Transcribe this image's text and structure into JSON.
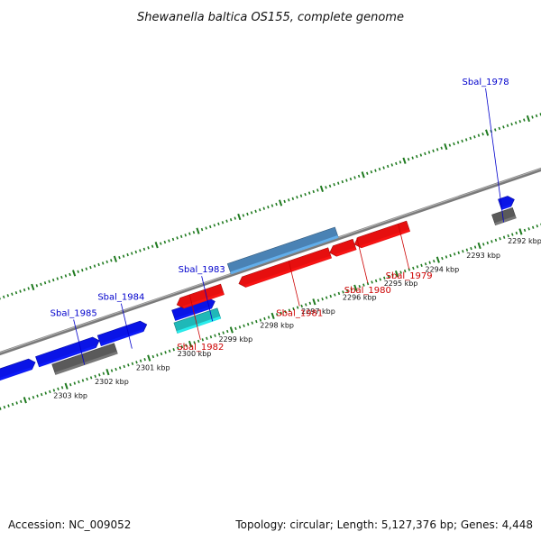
{
  "title": "Shewanella baltica OS155, complete genome",
  "footer": {
    "accession": "Accession: NC_009052",
    "summary": "Topology: circular; Length: 5,127,376 bp; Genes: 4,448"
  },
  "colors": {
    "backbone": "#7a7a7a",
    "tick": "#1f7a1f",
    "forward_label": "#0000cc",
    "reverse_label": "#cc0000",
    "forward_cds": "#0a14e6",
    "reverse_cds": "#e60f0f",
    "rna": "#1fb8b8",
    "pseudo": "#5a5a5a",
    "misc": "#4a82b4"
  },
  "scale": {
    "ticks": [
      {
        "kbp": 2292,
        "label": "2292 kbp"
      },
      {
        "kbp": 2293,
        "label": "2293 kbp"
      },
      {
        "kbp": 2294,
        "label": "2294 kbp"
      },
      {
        "kbp": 2295,
        "label": "2295 kbp"
      },
      {
        "kbp": 2296,
        "label": "2296 kbp"
      },
      {
        "kbp": 2297,
        "label": "2297 kbp"
      },
      {
        "kbp": 2298,
        "label": "2298 kbp"
      },
      {
        "kbp": 2299,
        "label": "2299 kbp"
      },
      {
        "kbp": 2300,
        "label": "2300 kbp"
      },
      {
        "kbp": 2301,
        "label": "2301 kbp"
      },
      {
        "kbp": 2302,
        "label": "2302 kbp"
      },
      {
        "kbp": 2303,
        "label": "2303 kbp"
      }
    ]
  },
  "labels": [
    {
      "text": "Sbal_1978",
      "strand": "forward",
      "kbp": 2292.3
    },
    {
      "text": "Sbal_1983",
      "strand": "forward",
      "kbp": 2299.35
    },
    {
      "text": "Sbal_1984",
      "strand": "forward",
      "kbp": 2301.3
    },
    {
      "text": "Sbal_1985",
      "strand": "forward",
      "kbp": 2302.45
    },
    {
      "text": "Sbal_1979",
      "strand": "reverse",
      "kbp": 2294.6
    },
    {
      "text": "Sbal_1980",
      "strand": "reverse",
      "kbp": 2295.6
    },
    {
      "text": "Sbal_1981",
      "strand": "reverse",
      "kbp": 2297.25
    },
    {
      "text": "Sbal_1982",
      "strand": "reverse",
      "kbp": 2299.65
    }
  ],
  "features": [
    {
      "type": "forward_cds",
      "start_kbp": 2291.9,
      "end_kbp": 2292.25,
      "row": "forward-inner",
      "arrow": "right"
    },
    {
      "type": "pseudo",
      "start_kbp": 2292.0,
      "end_kbp": 2292.5,
      "row": "forward-outer",
      "arrow": "none"
    },
    {
      "type": "rna",
      "start_kbp": 2299.15,
      "end_kbp": 2300.2,
      "row": "forward-outer",
      "arrow": "none"
    },
    {
      "type": "forward_cds",
      "start_kbp": 2299.15,
      "end_kbp": 2300.15,
      "row": "forward-inner",
      "arrow": "right"
    },
    {
      "type": "pseudo",
      "start_kbp": 2301.65,
      "end_kbp": 2303.15,
      "row": "forward-outer",
      "arrow": "none"
    },
    {
      "type": "forward_cds",
      "start_kbp": 2300.8,
      "end_kbp": 2301.95,
      "row": "forward-inner",
      "arrow": "right"
    },
    {
      "type": "forward_cds",
      "start_kbp": 2301.95,
      "end_kbp": 2303.45,
      "row": "forward-inner",
      "arrow": "right"
    },
    {
      "type": "forward_cds",
      "start_kbp": 2303.5,
      "end_kbp": 2304.5,
      "row": "forward-inner",
      "arrow": "right"
    },
    {
      "type": "reverse_cds",
      "start_kbp": 2294.4,
      "end_kbp": 2295.7,
      "row": "reverse-outer",
      "arrow": "left"
    },
    {
      "type": "reverse_cds",
      "start_kbp": 2295.7,
      "end_kbp": 2296.3,
      "row": "reverse-outer",
      "arrow": "left"
    },
    {
      "type": "reverse_cds",
      "start_kbp": 2296.3,
      "end_kbp": 2298.5,
      "row": "reverse-outer",
      "arrow": "left"
    },
    {
      "type": "reverse_cds",
      "start_kbp": 2298.9,
      "end_kbp": 2300.0,
      "row": "reverse-outer",
      "arrow": "left"
    },
    {
      "type": "misc",
      "start_kbp": 2296.0,
      "end_kbp": 2298.6,
      "row": "reverse-inner",
      "arrow": "none"
    }
  ]
}
